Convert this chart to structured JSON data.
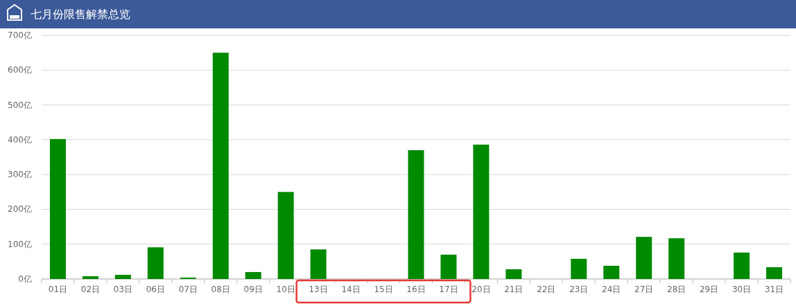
{
  "chart_data": {
    "type": "bar",
    "title": "七月份限售解禁总览",
    "categories": [
      "01日",
      "02日",
      "03日",
      "06日",
      "07日",
      "08日",
      "09日",
      "10日",
      "13日",
      "14日",
      "15日",
      "16日",
      "17日",
      "20日",
      "21日",
      "22日",
      "23日",
      "24日",
      "27日",
      "28日",
      "29日",
      "30日",
      "31日"
    ],
    "values": [
      402,
      8,
      12,
      91,
      4,
      650,
      20,
      250,
      85,
      0,
      0,
      370,
      70,
      386,
      28,
      0,
      58,
      38,
      121,
      117,
      0,
      76,
      34
    ],
    "color": "#008a00",
    "ylim": [
      0,
      700
    ],
    "yticks": [
      {
        "value": 0,
        "label": "0亿"
      },
      {
        "value": 100,
        "label": "100亿"
      },
      {
        "value": 200,
        "label": "200亿"
      },
      {
        "value": 300,
        "label": "300亿"
      },
      {
        "value": 400,
        "label": "400亿"
      },
      {
        "value": 500,
        "label": "500亿"
      },
      {
        "value": 600,
        "label": "600亿"
      },
      {
        "value": 700,
        "label": "700亿"
      }
    ],
    "grid": "y"
  }
}
